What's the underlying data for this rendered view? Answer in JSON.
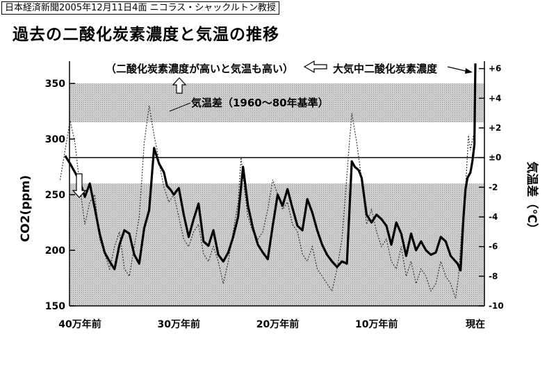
{
  "header": {
    "source": "日本経済新聞2005年12月11日4面 ニコラス・シャックルトン教授",
    "title": "過去の二酸化炭素濃度と気温の推移"
  },
  "chart_data": {
    "type": "line",
    "x_unit": "years before present",
    "xlim": [
      400000,
      0
    ],
    "x_ticks": [
      {
        "value": 400000,
        "label": "40万年前"
      },
      {
        "value": 300000,
        "label": "30万年前"
      },
      {
        "value": 200000,
        "label": "20万年前"
      },
      {
        "value": 100000,
        "label": "10万年前"
      },
      {
        "value": 0,
        "label": "現在"
      }
    ],
    "ylabel": "CO2(ppm)",
    "ylim": [
      150,
      370
    ],
    "y_ticks": [
      150,
      200,
      250,
      300,
      350
    ],
    "y2label": "気温差（℃）",
    "y2lim": [
      -10,
      6.5
    ],
    "y2_ticks": [
      "-10",
      "-8",
      "-6",
      "-4",
      "-2",
      "±0",
      "+2",
      "+4",
      "+6"
    ],
    "y2_tick_values": [
      -10,
      -8,
      -6,
      -4,
      -2,
      0,
      2,
      4,
      6
    ],
    "grid": false,
    "bands": [
      {
        "name": "high",
        "y_from": 315,
        "y_to": 350
      },
      {
        "name": "low",
        "y_from": 150,
        "y_to": 260
      }
    ],
    "reference_line": {
      "axis": "y2",
      "value": 0
    },
    "annotations": {
      "correlation": "（二酸化炭素濃度が高いと気温も高い）",
      "co2_label": "大気中二酸化炭素濃度",
      "temp_label": "気温差（1960〜80年基準）"
    },
    "series": [
      {
        "name": "大気中二酸化炭素濃度",
        "axis": "y",
        "style": "solid",
        "x": [
          415000,
          410000,
          405000,
          400000,
          395000,
          390000,
          385000,
          380000,
          375000,
          370000,
          365000,
          360000,
          355000,
          350000,
          345000,
          340000,
          335000,
          330000,
          325000,
          320000,
          315000,
          312000,
          308000,
          305000,
          300000,
          295000,
          290000,
          285000,
          280000,
          275000,
          270000,
          265000,
          260000,
          255000,
          250000,
          245000,
          240000,
          235000,
          230000,
          225000,
          220000,
          215000,
          210000,
          205000,
          200000,
          195000,
          190000,
          185000,
          180000,
          175000,
          170000,
          165000,
          160000,
          155000,
          150000,
          145000,
          140000,
          135000,
          130000,
          125000,
          122000,
          118000,
          115000,
          110000,
          105000,
          100000,
          95000,
          90000,
          85000,
          80000,
          75000,
          70000,
          65000,
          60000,
          55000,
          50000,
          45000,
          40000,
          35000,
          30000,
          25000,
          20000,
          18000,
          15000,
          12000,
          10000,
          8000,
          5000,
          3000,
          1000,
          0
        ],
        "values": [
          285,
          278,
          270,
          262,
          248,
          260,
          238,
          215,
          198,
          190,
          183,
          205,
          218,
          215,
          196,
          188,
          220,
          236,
          292,
          278,
          270,
          258,
          254,
          250,
          256,
          232,
          212,
          228,
          242,
          208,
          204,
          218,
          196,
          190,
          198,
          212,
          230,
          275,
          240,
          220,
          205,
          198,
          192,
          222,
          250,
          240,
          255,
          238,
          222,
          218,
          246,
          234,
          218,
          205,
          196,
          190,
          185,
          190,
          188,
          280,
          275,
          272,
          265,
          232,
          225,
          232,
          228,
          222,
          205,
          225,
          215,
          195,
          215,
          200,
          208,
          200,
          196,
          198,
          212,
          208,
          195,
          190,
          188,
          182,
          230,
          255,
          265,
          270,
          280,
          295,
          368
        ]
      },
      {
        "name": "気温差（1960〜80年基準）",
        "axis": "y2",
        "style": "dashed",
        "x": [
          420000,
          415000,
          410000,
          405000,
          400000,
          395000,
          390000,
          385000,
          380000,
          375000,
          370000,
          365000,
          360000,
          355000,
          350000,
          345000,
          340000,
          335000,
          330000,
          325000,
          322000,
          318000,
          315000,
          310000,
          305000,
          300000,
          295000,
          290000,
          285000,
          280000,
          275000,
          270000,
          265000,
          260000,
          255000,
          250000,
          245000,
          240000,
          237000,
          233000,
          230000,
          225000,
          220000,
          215000,
          210000,
          205000,
          200000,
          195000,
          190000,
          185000,
          180000,
          175000,
          170000,
          165000,
          160000,
          155000,
          150000,
          145000,
          140000,
          135000,
          132000,
          128000,
          125000,
          120000,
          115000,
          110000,
          105000,
          100000,
          95000,
          90000,
          85000,
          80000,
          75000,
          70000,
          65000,
          60000,
          55000,
          50000,
          45000,
          40000,
          35000,
          30000,
          25000,
          20000,
          17000,
          14000,
          11000,
          9000,
          7000,
          5000,
          2000,
          0
        ],
        "values": [
          -1.5,
          0.5,
          2.5,
          1.0,
          -2.0,
          -4.5,
          -3.0,
          -2.5,
          -5.5,
          -6.5,
          -7.5,
          -6.0,
          -5.0,
          -7.5,
          -8.0,
          -6.0,
          -4.0,
          1.0,
          3.5,
          1.5,
          0.5,
          -1.0,
          -2.0,
          -3.0,
          -2.5,
          -4.0,
          -5.5,
          -6.0,
          -5.0,
          -4.5,
          -6.5,
          -7.0,
          -6.0,
          -7.0,
          -8.5,
          -7.0,
          -5.0,
          -3.0,
          0.0,
          -2.5,
          -4.0,
          -5.0,
          -5.5,
          -5.0,
          -3.5,
          -1.5,
          -2.5,
          -3.5,
          -3.0,
          -4.5,
          -5.0,
          -6.5,
          -7.0,
          -6.0,
          -7.5,
          -8.0,
          -8.5,
          -9.0,
          -7.5,
          -5.5,
          -3.0,
          0.5,
          3.0,
          1.0,
          -1.5,
          -4.5,
          -3.5,
          -5.0,
          -6.0,
          -5.5,
          -7.0,
          -7.5,
          -6.0,
          -8.0,
          -7.0,
          -8.5,
          -7.5,
          -8.0,
          -9.0,
          -8.5,
          -7.0,
          -8.0,
          -8.5,
          -9.5,
          -8.0,
          -5.0,
          -3.0,
          -1.0,
          1.5,
          0.5,
          1.5,
          1.0
        ]
      }
    ]
  }
}
